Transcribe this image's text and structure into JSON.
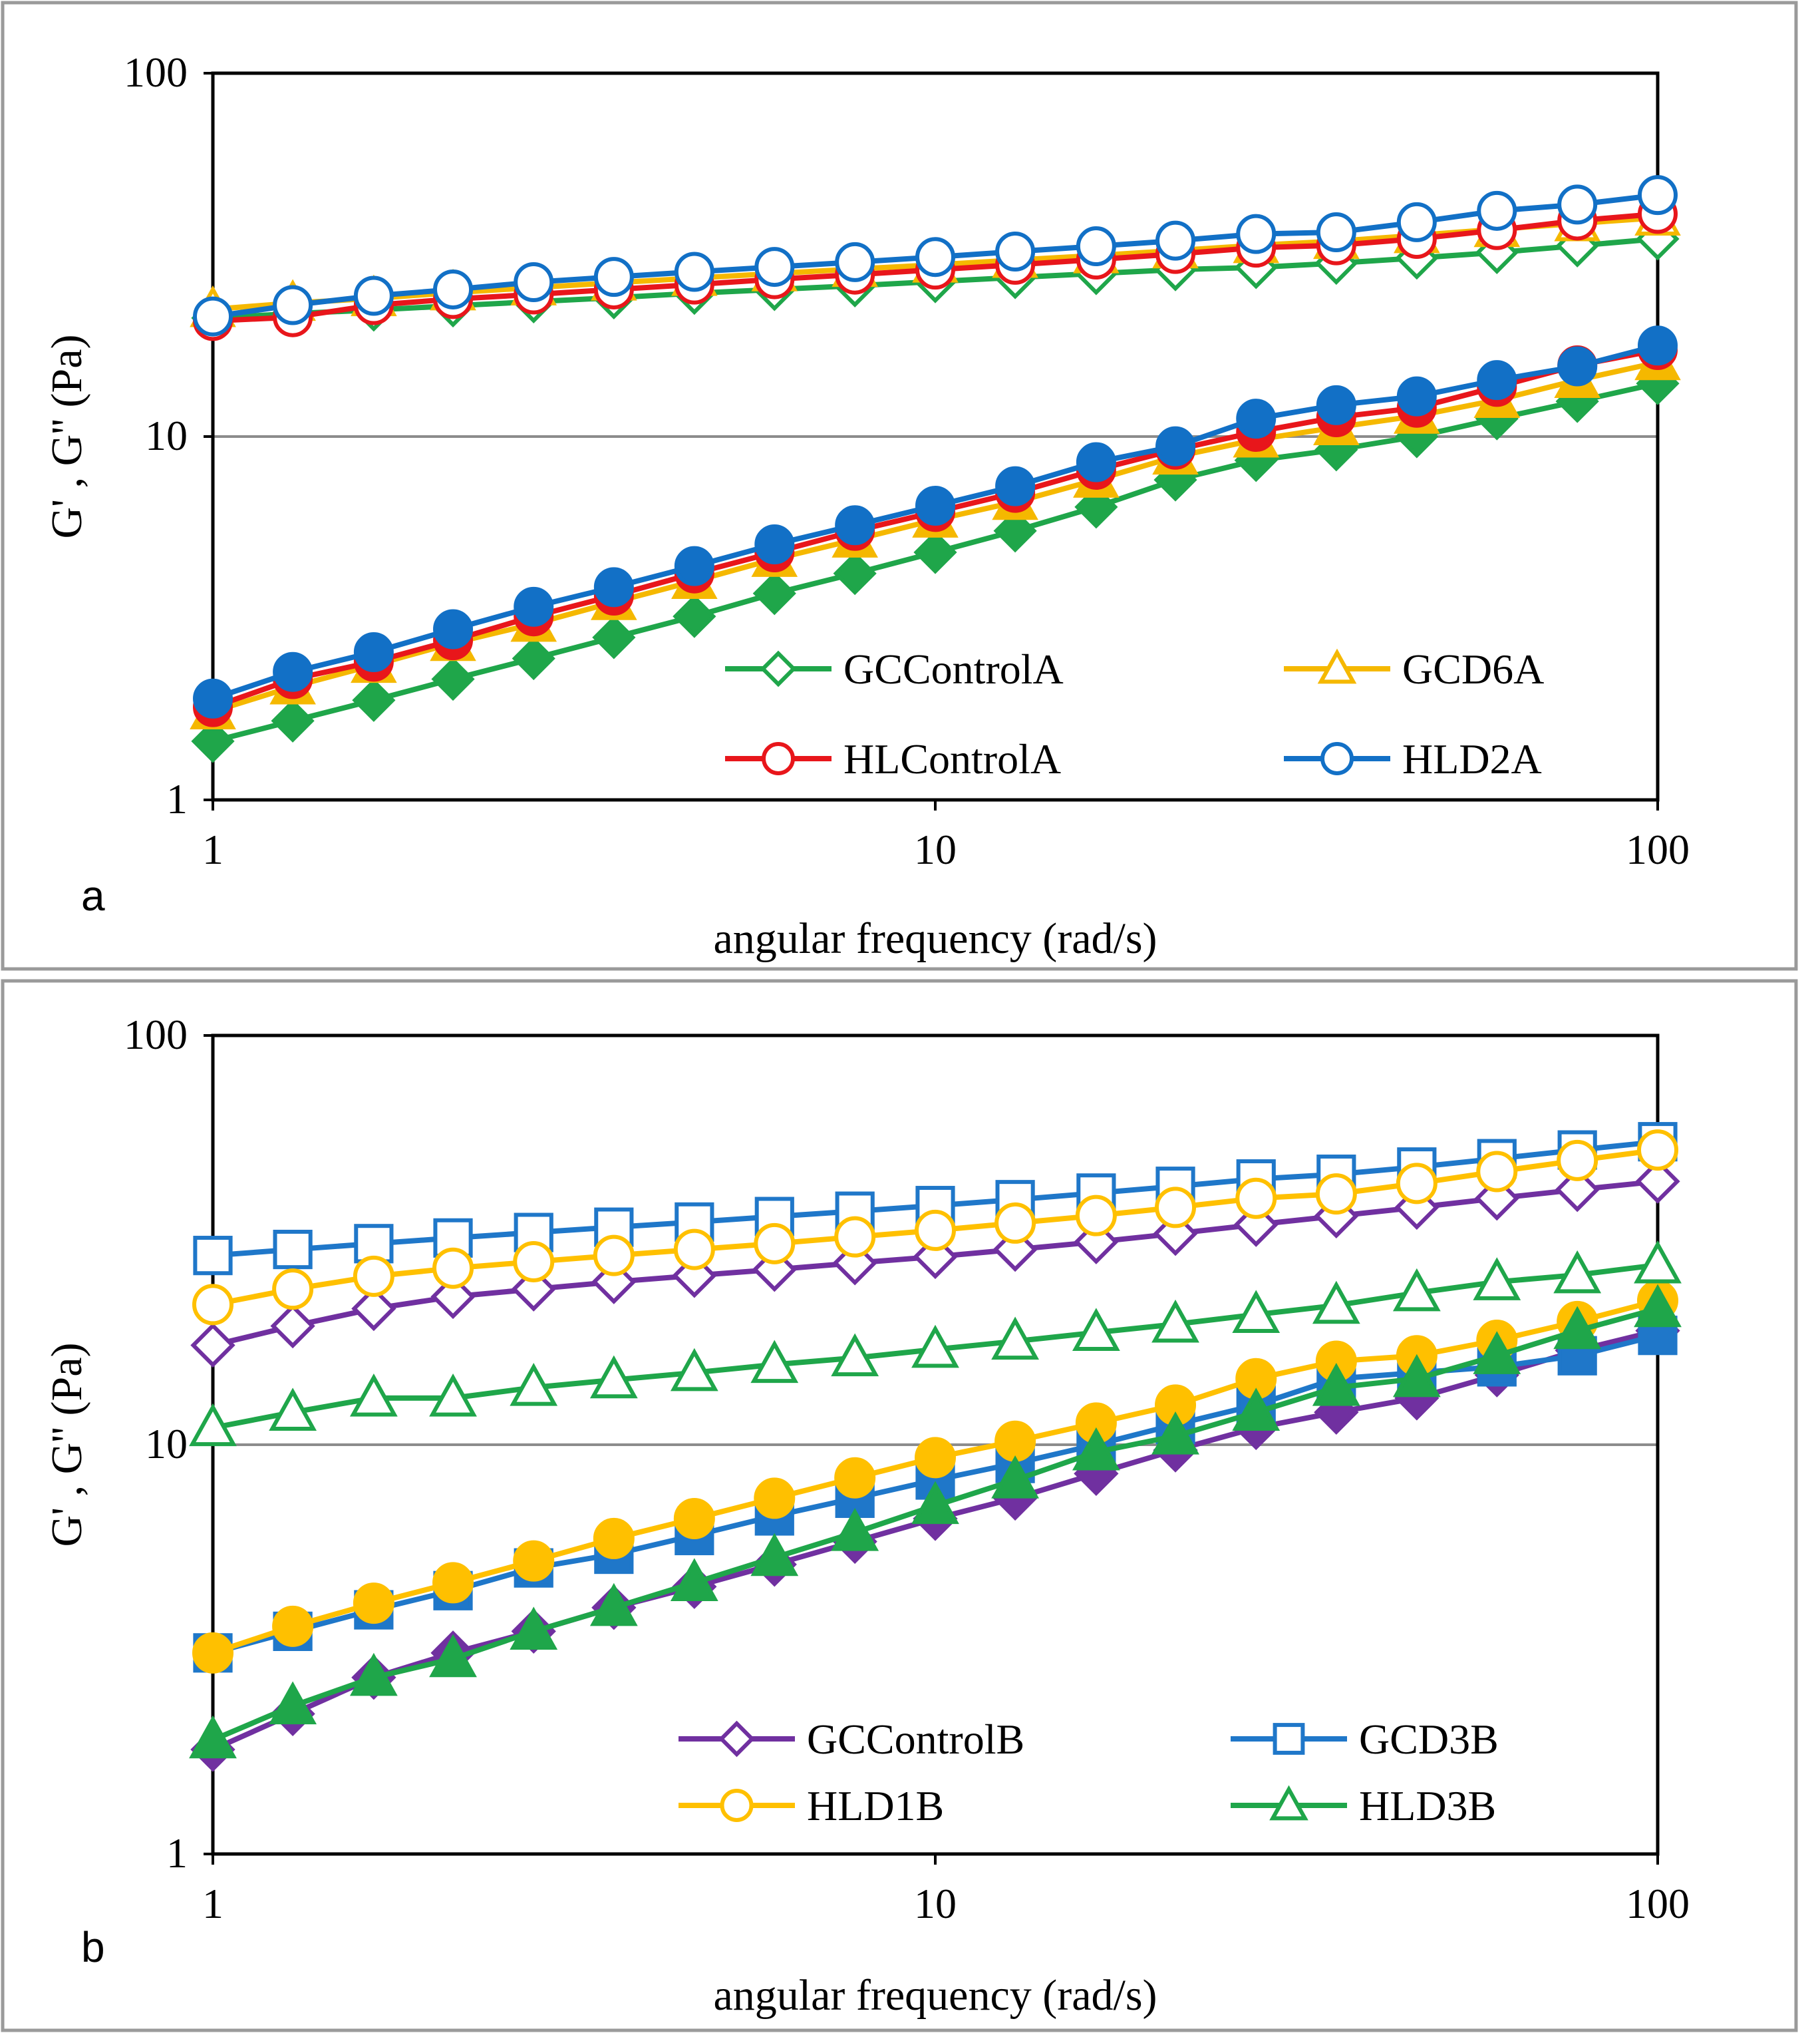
{
  "chart_data": [
    {
      "panel": "a",
      "type": "line",
      "xscale": "log",
      "yscale": "log",
      "xlim": [
        1,
        100
      ],
      "ylim": [
        1,
        100
      ],
      "xticks": [
        1,
        10,
        100
      ],
      "yticks": [
        1,
        10,
        100
      ],
      "xtick_labels": [
        "1",
        "10",
        "100"
      ],
      "ytick_labels": [
        "1",
        "10",
        "100"
      ],
      "xlabel": "angular frequency (rad/s)",
      "ylabel": "G' , G'' (Pa)",
      "legend_position": "lower-right",
      "x": [
        1,
        1.29,
        1.67,
        2.15,
        2.78,
        3.59,
        4.64,
        5.99,
        7.74,
        10,
        12.9,
        16.7,
        21.5,
        27.8,
        35.9,
        46.4,
        59.9,
        77.4,
        100
      ],
      "series": [
        {
          "name": "GCControlA",
          "color": "#1fa64a",
          "marker": "diamond",
          "G_prime": [
            21.2,
            21.8,
            22.3,
            22.9,
            23.5,
            24.1,
            24.8,
            25.4,
            26.0,
            26.7,
            27.4,
            28.1,
            28.8,
            29.2,
            30.0,
            31.0,
            32.1,
            33.5,
            35.0
          ],
          "G_double_prime": [
            1.45,
            1.65,
            1.88,
            2.15,
            2.45,
            2.8,
            3.2,
            3.7,
            4.2,
            4.8,
            5.5,
            6.4,
            7.6,
            8.6,
            9.2,
            10.0,
            11.2,
            12.5,
            14.0
          ]
        },
        {
          "name": "GCD6A",
          "color": "#f5b800",
          "marker": "triangle",
          "G_prime": [
            22.4,
            23.3,
            24.0,
            24.9,
            25.7,
            26.5,
            27.3,
            28.1,
            28.9,
            29.7,
            30.6,
            31.5,
            32.5,
            33.6,
            34.5,
            35.8,
            37.2,
            38.6,
            40.0
          ],
          "G_double_prime": [
            1.75,
            2.05,
            2.35,
            2.7,
            3.05,
            3.5,
            4.0,
            4.6,
            5.2,
            5.9,
            6.6,
            7.6,
            8.8,
            9.8,
            10.6,
            11.4,
            12.6,
            14.3,
            16.0
          ]
        },
        {
          "name": "HLControlA",
          "color": "#e8161b",
          "marker": "circle",
          "G_prime": [
            20.8,
            21.3,
            23.0,
            23.9,
            24.6,
            25.4,
            26.2,
            27.1,
            27.9,
            28.8,
            29.7,
            30.7,
            31.8,
            33.1,
            33.6,
            35.0,
            37.0,
            39.3,
            41.0
          ],
          "G_double_prime": [
            1.8,
            2.15,
            2.4,
            2.75,
            3.2,
            3.65,
            4.2,
            4.8,
            5.5,
            6.2,
            7.0,
            8.1,
            9.2,
            10.3,
            11.3,
            12.0,
            13.7,
            15.7,
            17.3
          ]
        },
        {
          "name": "HLD2A",
          "color": "#1270c6",
          "marker": "circle",
          "G_prime": [
            21.4,
            23.0,
            24.4,
            25.4,
            26.6,
            27.5,
            28.4,
            29.3,
            30.2,
            31.2,
            32.3,
            33.4,
            34.6,
            36.1,
            36.5,
            38.9,
            41.8,
            43.5,
            46.2
          ],
          "G_double_prime": [
            1.9,
            2.25,
            2.55,
            2.95,
            3.4,
            3.85,
            4.4,
            5.05,
            5.7,
            6.45,
            7.3,
            8.5,
            9.4,
            11.2,
            12.2,
            12.9,
            14.3,
            15.6,
            17.8
          ]
        }
      ]
    },
    {
      "panel": "b",
      "type": "line",
      "xscale": "log",
      "yscale": "log",
      "xlim": [
        1,
        100
      ],
      "ylim": [
        1,
        100
      ],
      "xticks": [
        1,
        10,
        100
      ],
      "yticks": [
        1,
        10,
        100
      ],
      "xtick_labels": [
        "1",
        "10",
        "100"
      ],
      "ytick_labels": [
        "1",
        "10",
        "100"
      ],
      "xlabel": "angular frequency (rad/s)",
      "ylabel": "G' , G'' (Pa)",
      "legend_position": "lower-right",
      "x": [
        1,
        1.29,
        1.67,
        2.15,
        2.78,
        3.59,
        4.64,
        5.99,
        7.74,
        10,
        12.9,
        16.7,
        21.5,
        27.8,
        35.9,
        46.4,
        59.9,
        77.4,
        100
      ],
      "series": [
        {
          "name": "GCControlB",
          "color": "#7030a0",
          "marker": "diamond",
          "G_prime": [
            17.5,
            19.5,
            21.5,
            23.0,
            24.0,
            25.0,
            25.9,
            26.8,
            27.8,
            28.8,
            30.0,
            31.3,
            32.8,
            34.5,
            36.2,
            38.0,
            40.0,
            42.0,
            44.0
          ],
          "G_double_prime": [
            1.8,
            2.2,
            2.7,
            3.1,
            3.5,
            4.0,
            4.5,
            5.1,
            5.8,
            6.6,
            7.4,
            8.5,
            9.7,
            11.0,
            12.0,
            13.0,
            14.8,
            17.0,
            19.0
          ]
        },
        {
          "name": "GCD3B",
          "color": "#1f77c9",
          "marker": "square",
          "G_prime": [
            29.0,
            30.0,
            31.0,
            32.0,
            33.0,
            34.0,
            35.0,
            36.1,
            37.2,
            38.4,
            39.7,
            41.2,
            42.8,
            44.6,
            45.8,
            47.7,
            50.0,
            52.5,
            55.0
          ],
          "G_double_prime": [
            3.1,
            3.5,
            3.95,
            4.4,
            5.0,
            5.4,
            6.0,
            6.7,
            7.4,
            8.2,
            9.0,
            10.0,
            11.2,
            12.5,
            14.5,
            15.0,
            15.5,
            16.5,
            18.5
          ]
        },
        {
          "name": "HLD1B",
          "color": "#ffc000",
          "marker": "circle",
          "G_prime": [
            22.0,
            24.0,
            25.8,
            27.0,
            28.0,
            29.0,
            30.0,
            31.0,
            32.2,
            33.4,
            34.8,
            36.3,
            38.0,
            40.0,
            41.0,
            43.5,
            46.5,
            49.5,
            52.5
          ],
          "G_double_prime": [
            3.1,
            3.6,
            4.1,
            4.6,
            5.2,
            5.9,
            6.6,
            7.4,
            8.3,
            9.3,
            10.2,
            11.3,
            12.5,
            14.5,
            16.0,
            16.5,
            18.0,
            20.0,
            22.5
          ]
        },
        {
          "name": "HLD3B",
          "color": "#1fa64a",
          "marker": "triangle",
          "G_prime": [
            11.0,
            12.0,
            13.0,
            13.0,
            13.8,
            14.4,
            15.0,
            15.7,
            16.3,
            17.1,
            17.9,
            18.8,
            19.7,
            20.8,
            21.9,
            23.5,
            25.0,
            26.0,
            27.5
          ],
          "G_double_prime": [
            1.9,
            2.3,
            2.7,
            3.0,
            3.5,
            4.0,
            4.6,
            5.3,
            6.1,
            7.1,
            8.2,
            9.6,
            10.5,
            12.0,
            13.8,
            14.5,
            16.5,
            19.0,
            21.5
          ]
        }
      ]
    }
  ],
  "panels": {
    "a": {
      "label": "a"
    },
    "b": {
      "label": "b"
    }
  }
}
